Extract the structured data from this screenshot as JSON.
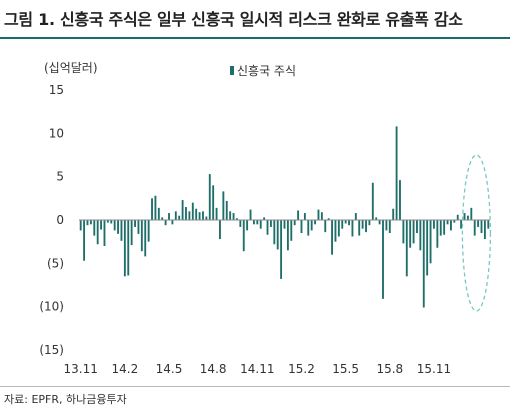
{
  "header": {
    "title": "그림 1. 신흥국 주식은 일부 신흥국 일시적 리스크 완화로 유출폭 감소"
  },
  "footer": {
    "source": "자료: EPFR, 하나금융투자"
  },
  "colors": {
    "bar": "#1e6e69",
    "title_rule": "#1b6b66",
    "highlight": "#7cc6c2"
  },
  "chart_data": {
    "type": "bar",
    "unit_label": "(십억달러)",
    "legend": {
      "position": "top-center"
    },
    "series": [
      {
        "name": "신흥국 주식",
        "values": [
          -1.2,
          -4.7,
          -0.6,
          -0.5,
          -1.8,
          -2.8,
          -1.1,
          -3.0,
          -0.3,
          -0.4,
          -1.2,
          -1.6,
          -2.4,
          -6.5,
          -6.4,
          -2.9,
          -0.8,
          -1.6,
          -3.6,
          -4.2,
          -2.5,
          2.5,
          2.8,
          1.4,
          0.3,
          -0.6,
          0.8,
          -0.5,
          1.0,
          0.5,
          2.3,
          1.5,
          1.0,
          2.0,
          1.3,
          0.9,
          1.0,
          0.4,
          5.3,
          4.0,
          1.4,
          -2.2,
          3.3,
          2.2,
          1.0,
          0.8,
          0.2,
          -0.8,
          -3.6,
          -1.2,
          1.2,
          -0.5,
          -0.5,
          -1.0,
          0.3,
          -1.7,
          -0.8,
          -2.8,
          -3.4,
          -6.8,
          -1.0,
          -3.5,
          -2.4,
          -0.6,
          1.1,
          -1.5,
          0.8,
          -1.8,
          -1.2,
          -0.5,
          1.2,
          0.9,
          -1.4,
          0.2,
          -4.0,
          -2.5,
          -1.9,
          -1.0,
          -0.4,
          -0.6,
          -1.9,
          0.8,
          -1.8,
          -1.0,
          -1.4,
          -0.6,
          4.3,
          0.3,
          -0.5,
          -9.1,
          -1.2,
          -1.5,
          1.3,
          10.8,
          4.6,
          -2.7,
          -6.5,
          -3.2,
          -2.7,
          -1.5,
          -3.5,
          -10.1,
          -6.4,
          -5.0,
          -1.0,
          -3.2,
          -1.8,
          -1.7,
          -0.5,
          -1.2,
          -0.3,
          0.6,
          -1.0,
          0.8,
          0.5,
          1.4,
          -1.8,
          -0.8,
          -1.5,
          -2.2,
          -1.0
        ]
      }
    ],
    "x_tick_labels": [
      "13.11",
      "14.2",
      "14.5",
      "14.8",
      "14.11",
      "15.2",
      "15.5",
      "15.8",
      "15.11"
    ],
    "y_ticks": [
      15,
      10,
      5,
      0,
      -5,
      -10,
      -15
    ],
    "y_tick_labels": [
      "15",
      "10",
      "5",
      "0",
      "(5)",
      "(10)",
      "(15)"
    ],
    "ylim": [
      -15,
      15
    ],
    "grid": false,
    "annotation": {
      "type": "dashed-ellipse",
      "around": "last-weeks"
    }
  }
}
